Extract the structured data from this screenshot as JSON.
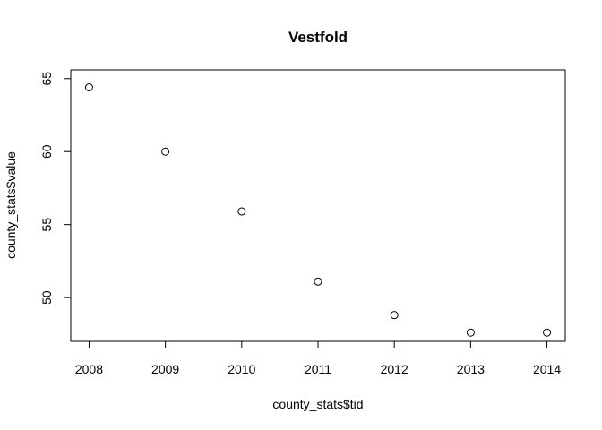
{
  "chart_data": {
    "type": "scatter",
    "title": "Vestfold",
    "xlabel": "county_stats$tid",
    "ylabel": "county_stats$value",
    "x": [
      2008,
      2009,
      2010,
      2011,
      2012,
      2013,
      2014
    ],
    "y": [
      64.4,
      60.0,
      55.9,
      51.1,
      48.8,
      47.6,
      47.6
    ],
    "xlim": [
      2007.76,
      2014.24
    ],
    "ylim": [
      47.0,
      65.6
    ],
    "xticks": [
      2008,
      2009,
      2010,
      2011,
      2012,
      2013,
      2014
    ],
    "yticks": [
      50,
      55,
      60,
      65
    ],
    "grid": false,
    "marker": "open-circle",
    "colors": {
      "points": "#000000",
      "axes": "#000000"
    }
  }
}
